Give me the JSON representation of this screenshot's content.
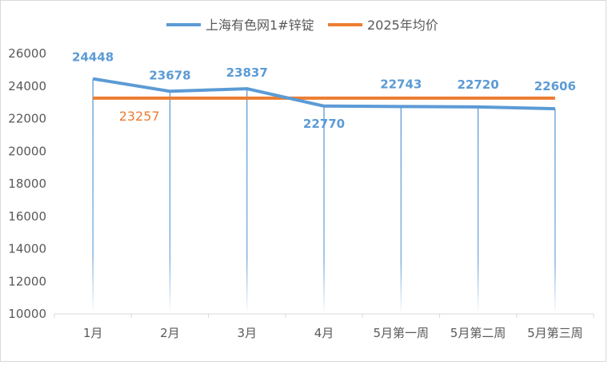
{
  "chart_data": {
    "type": "line",
    "categories": [
      "1月",
      "2月",
      "3月",
      "4月",
      "5月第一周",
      "5月第二周",
      "5月第三周"
    ],
    "series": [
      {
        "name": "上海有色网1#锌锭",
        "values": [
          24448,
          23678,
          23837,
          22770,
          22743,
          22720,
          22606
        ],
        "color": "#5b9bd5"
      },
      {
        "name": "2025年均价",
        "values": [
          23257,
          23257,
          23257,
          23257,
          23257,
          23257,
          23257
        ],
        "color": "#ed7d31"
      }
    ],
    "avg_label": "23257",
    "ylim": [
      10000,
      26000
    ],
    "yticks": [
      "10000",
      "12000",
      "14000",
      "16000",
      "18000",
      "20000",
      "22000",
      "24000",
      "26000"
    ],
    "grid": false,
    "legend_position": "top",
    "drop_lines": true
  }
}
